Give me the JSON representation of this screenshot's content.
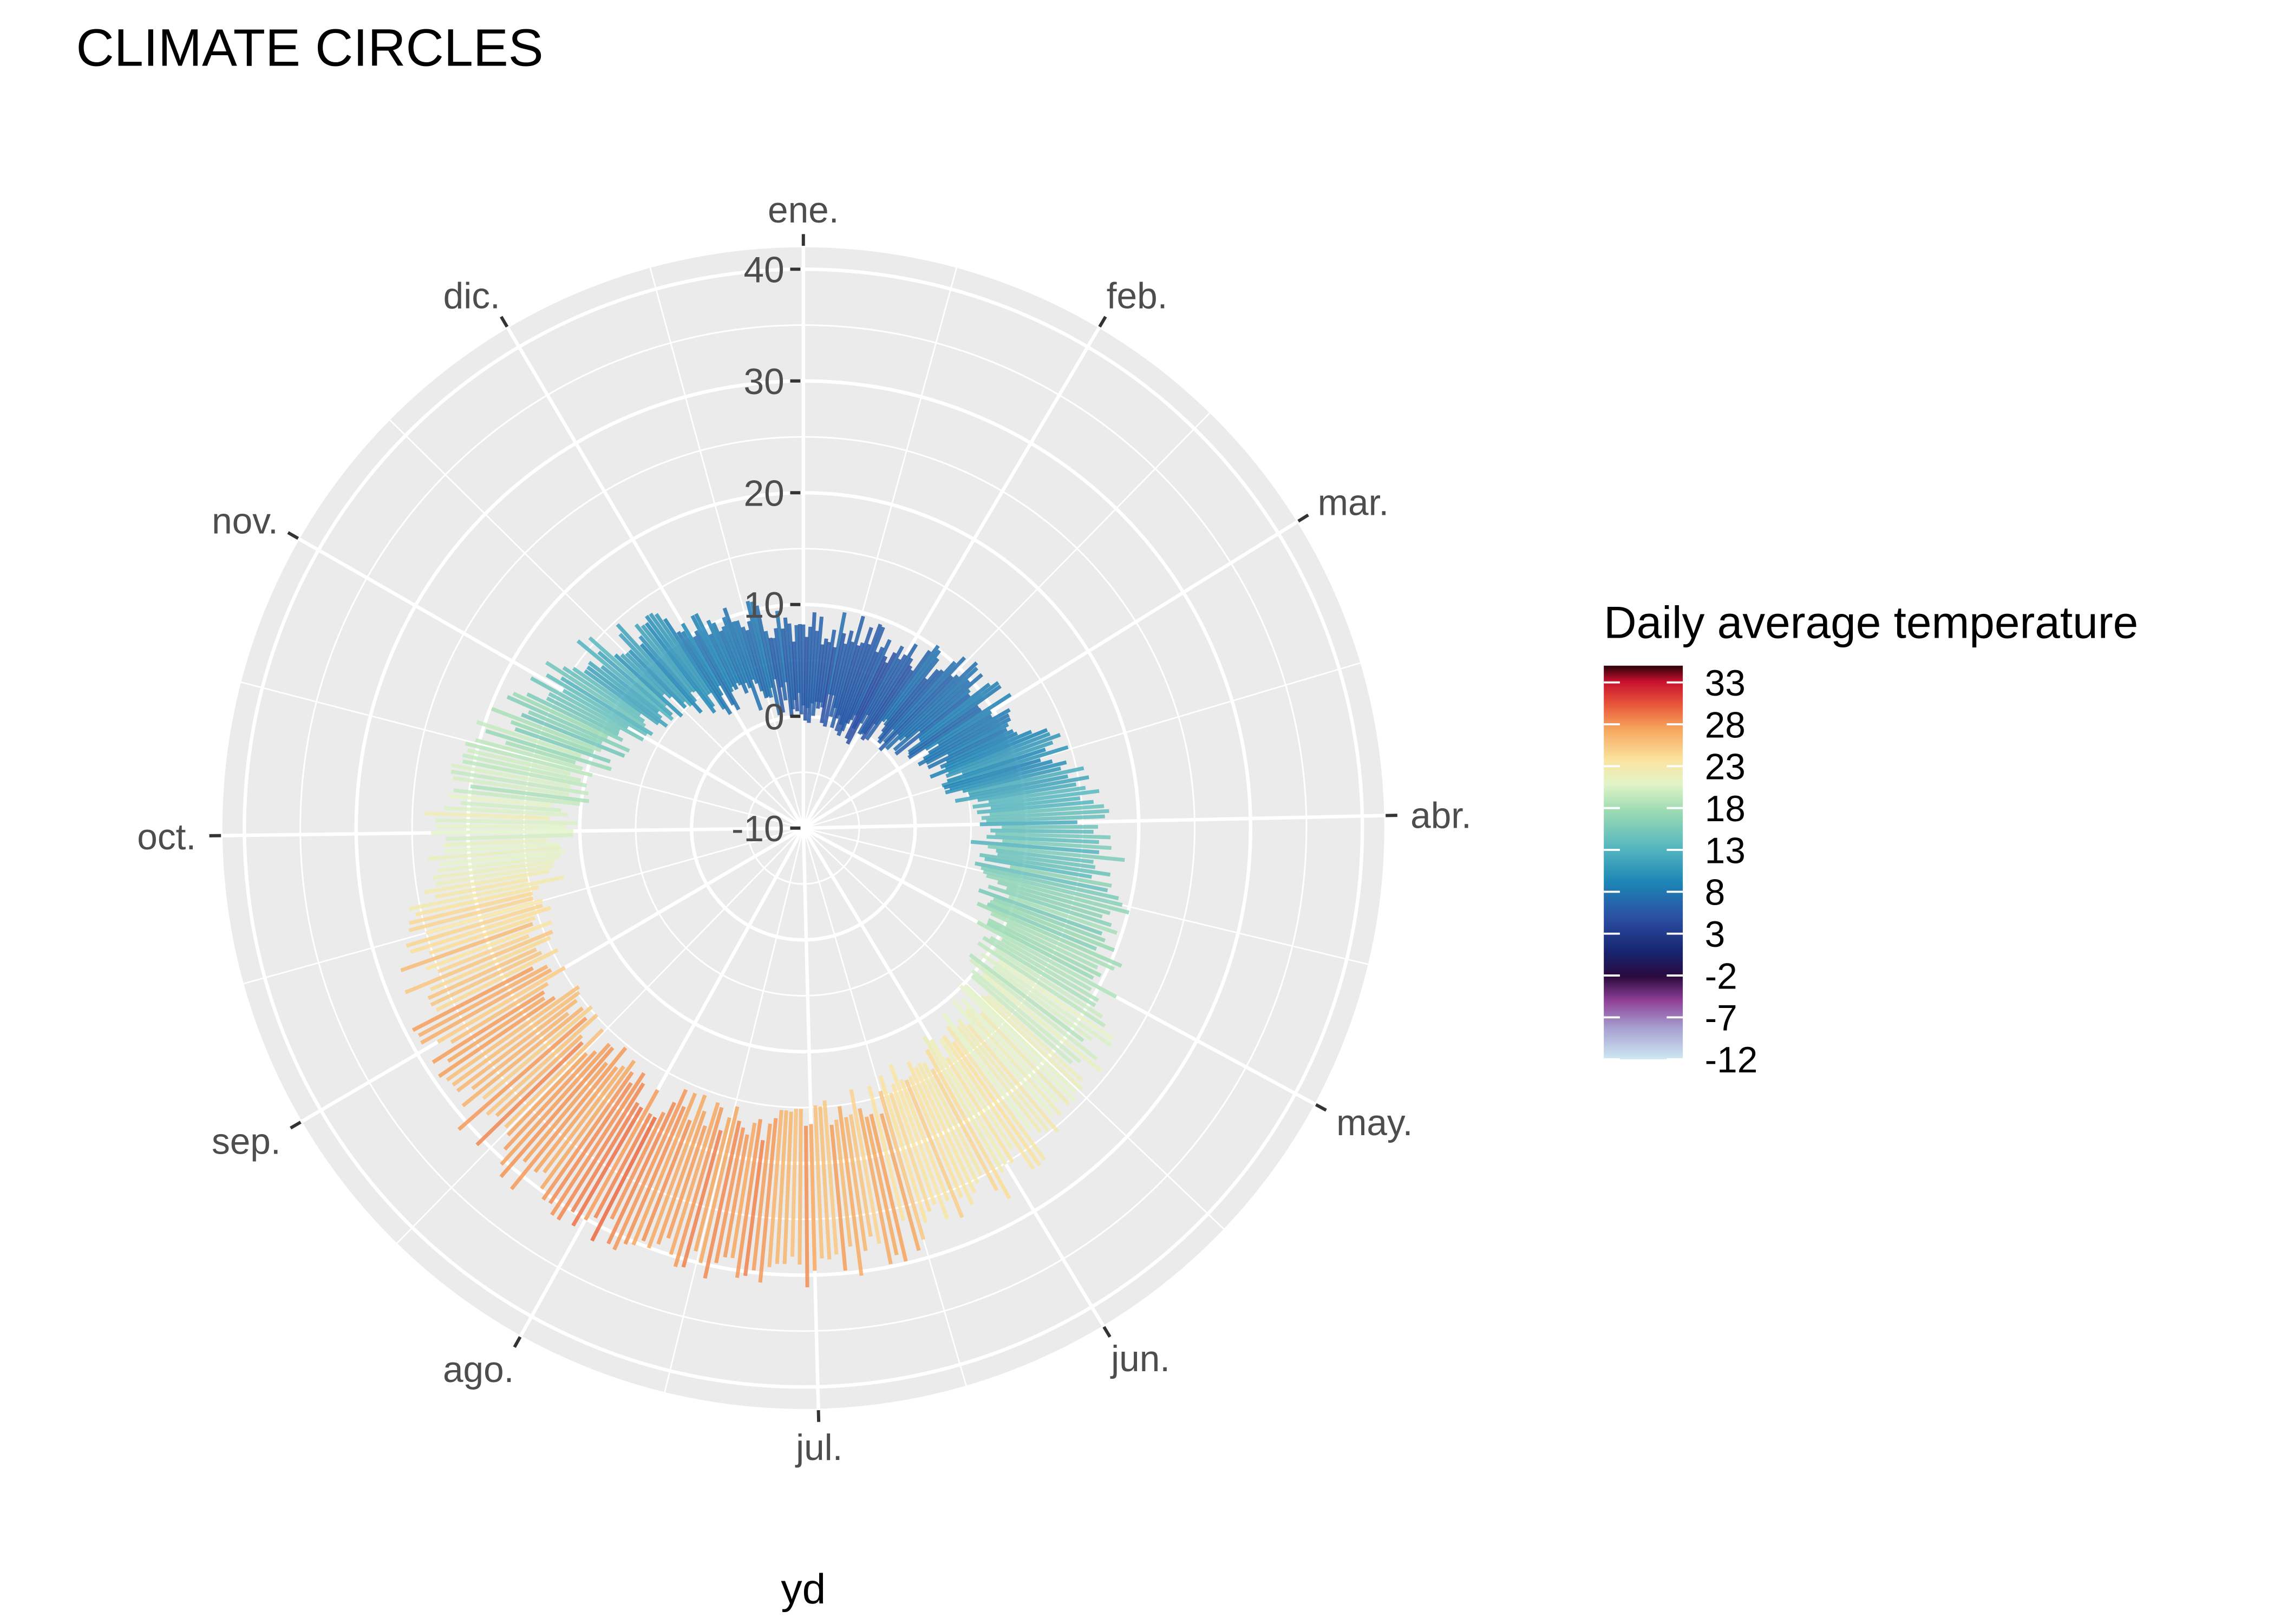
{
  "chart_data": {
    "type": "bar",
    "coord": "polar",
    "title": "CLIMATE CIRCLES",
    "xlabel": "yd",
    "ylabel": "",
    "ylim": [
      -10,
      40
    ],
    "y_ticks": [
      -10,
      0,
      10,
      20,
      30,
      40
    ],
    "month_labels": [
      "ene.",
      "feb.",
      "mar.",
      "abr.",
      "may.",
      "jun.",
      "jul.",
      "ago.",
      "sep.",
      "oct.",
      "nov.",
      "dic."
    ],
    "x_range": [
      1,
      365
    ],
    "grid": true,
    "legend": {
      "title": "Daily average temperature",
      "placement": "right",
      "ticks": [
        33,
        28,
        23,
        18,
        13,
        8,
        3,
        -2,
        -7,
        -12
      ],
      "range": [
        -12,
        35
      ],
      "palette": [
        "#a6d7ee",
        "#8e5ea2",
        "#3a0d4a",
        "#17236e",
        "#2b4fa4",
        "#1d86b6",
        "#58b8bf",
        "#9bdbb3",
        "#e3f4c8",
        "#fae4a0",
        "#f6a55d",
        "#e9573a",
        "#c8102e",
        "#2b0208"
      ]
    },
    "monthly_profile": {
      "x_day": [
        1,
        32,
        60,
        91,
        121,
        152,
        182,
        213,
        244,
        274,
        305,
        335,
        366
      ],
      "temp_mid": [
        4.5,
        4,
        7,
        11,
        15,
        19.5,
        23,
        24,
        22.5,
        17.5,
        12,
        7.5,
        4.5
      ],
      "temp_low": [
        1,
        0,
        3,
        6,
        9,
        13,
        16.5,
        17.5,
        16,
        12,
        7.5,
        3.5,
        1
      ],
      "temp_high": [
        8,
        8,
        11,
        16,
        21,
        26,
        29.5,
        30.5,
        28.5,
        23,
        16.5,
        11,
        8
      ]
    }
  }
}
